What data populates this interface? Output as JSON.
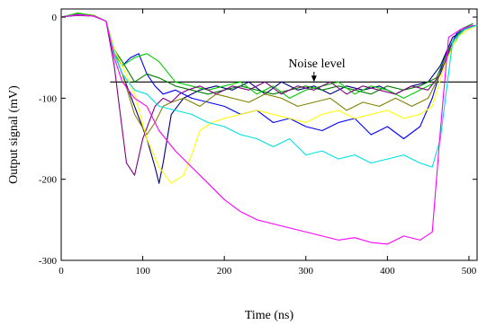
{
  "chart_data": {
    "type": "line",
    "title": "",
    "xlabel": "Time (ns)",
    "ylabel": "Output signal (mV)",
    "xlim": [
      0,
      510
    ],
    "ylim": [
      -300,
      10
    ],
    "xticks": [
      0,
      100,
      200,
      300,
      400,
      500
    ],
    "yticks": [
      0,
      -100,
      -200,
      -300
    ],
    "grid": false,
    "legend": "none",
    "annotation": {
      "text": "Noise level",
      "arrow_to": [
        310,
        -80
      ]
    },
    "noise_level": {
      "y": -80,
      "x_start": 60,
      "x_end": 510,
      "color": "#000000"
    },
    "series": [
      {
        "color": "#000080",
        "x": [
          0,
          20,
          40,
          55,
          65,
          75,
          90,
          105,
          115,
          120,
          125,
          135,
          150,
          170,
          190,
          210,
          230,
          250,
          270,
          290,
          310,
          330,
          350,
          370,
          390,
          410,
          430,
          450,
          465,
          480,
          495,
          510
        ],
        "y": [
          0,
          3,
          2,
          -5,
          -45,
          -70,
          -110,
          -150,
          -185,
          -205,
          -180,
          -120,
          -100,
          -90,
          -85,
          -90,
          -80,
          -95,
          -80,
          -90,
          -85,
          -95,
          -85,
          -90,
          -85,
          -95,
          -85,
          -80,
          -60,
          -25,
          -15,
          -10
        ]
      },
      {
        "color": "#0000ff",
        "x": [
          0,
          20,
          40,
          55,
          65,
          75,
          85,
          95,
          105,
          115,
          125,
          140,
          160,
          180,
          200,
          220,
          240,
          260,
          280,
          300,
          320,
          340,
          360,
          380,
          400,
          420,
          440,
          455,
          470,
          485,
          500,
          510
        ],
        "y": [
          0,
          3,
          1,
          -5,
          -40,
          -60,
          -50,
          -45,
          -70,
          -85,
          -95,
          -90,
          -100,
          -105,
          -110,
          -120,
          -115,
          -130,
          -125,
          -135,
          -140,
          -130,
          -125,
          -145,
          -135,
          -150,
          -135,
          -100,
          -50,
          -20,
          -12,
          -10
        ]
      },
      {
        "color": "#008000",
        "x": [
          0,
          20,
          40,
          55,
          65,
          75,
          90,
          105,
          120,
          140,
          160,
          180,
          200,
          220,
          240,
          260,
          280,
          300,
          320,
          340,
          360,
          380,
          400,
          420,
          440,
          460,
          475,
          490,
          505
        ],
        "y": [
          0,
          4,
          2,
          -5,
          -40,
          -55,
          -80,
          -70,
          -75,
          -85,
          -90,
          -95,
          -90,
          -85,
          -90,
          -95,
          -90,
          -85,
          -90,
          -85,
          -90,
          -95,
          -85,
          -90,
          -85,
          -75,
          -40,
          -15,
          -8
        ]
      },
      {
        "color": "#00cc00",
        "x": [
          0,
          20,
          40,
          55,
          65,
          75,
          90,
          105,
          120,
          140,
          160,
          180,
          200,
          220,
          240,
          260,
          280,
          300,
          320,
          340,
          360,
          380,
          400,
          420,
          440,
          460,
          475,
          490,
          505
        ],
        "y": [
          0,
          5,
          2,
          -5,
          -45,
          -60,
          -50,
          -45,
          -55,
          -80,
          -85,
          -90,
          -85,
          -80,
          -95,
          -85,
          -100,
          -90,
          -85,
          -80,
          -95,
          -85,
          -90,
          -100,
          -90,
          -80,
          -45,
          -18,
          -10
        ]
      },
      {
        "color": "#808000",
        "x": [
          0,
          20,
          40,
          55,
          65,
          75,
          90,
          105,
          115,
          125,
          135,
          150,
          170,
          190,
          210,
          230,
          250,
          270,
          290,
          310,
          330,
          350,
          370,
          390,
          410,
          430,
          450,
          465,
          480,
          495,
          510
        ],
        "y": [
          0,
          3,
          2,
          -5,
          -45,
          -70,
          -120,
          -145,
          -130,
          -110,
          -105,
          -100,
          -110,
          -95,
          -100,
          -105,
          -95,
          -100,
          -110,
          -105,
          -100,
          -115,
          -105,
          -110,
          -100,
          -110,
          -100,
          -70,
          -30,
          -15,
          -10
        ]
      },
      {
        "color": "#800080",
        "x": [
          0,
          20,
          40,
          55,
          65,
          70,
          80,
          90,
          100,
          115,
          125,
          135,
          145,
          155,
          170,
          190,
          210,
          230,
          250,
          270,
          290,
          310,
          330,
          350,
          370,
          390,
          410,
          430,
          450,
          465,
          480,
          495,
          510
        ],
        "y": [
          0,
          2,
          1,
          -5,
          -60,
          -100,
          -180,
          -195,
          -150,
          -110,
          -100,
          -105,
          -95,
          -90,
          -85,
          -95,
          -85,
          -90,
          -80,
          -95,
          -85,
          -90,
          -80,
          -95,
          -85,
          -90,
          -95,
          -85,
          -90,
          -70,
          -30,
          -15,
          -10
        ]
      },
      {
        "color": "#ffff00",
        "x": [
          0,
          20,
          40,
          55,
          65,
          75,
          90,
          105,
          120,
          135,
          150,
          160,
          170,
          185,
          200,
          220,
          240,
          260,
          280,
          300,
          320,
          340,
          360,
          380,
          400,
          420,
          440,
          455,
          470,
          485,
          500,
          510
        ],
        "y": [
          0,
          3,
          1,
          -5,
          -40,
          -60,
          -95,
          -150,
          -185,
          -205,
          -195,
          -170,
          -140,
          -130,
          -125,
          -120,
          -115,
          -120,
          -125,
          -130,
          -120,
          -115,
          -125,
          -120,
          -115,
          -125,
          -120,
          -110,
          -60,
          -25,
          -15,
          -10
        ]
      },
      {
        "color": "#00e0e0",
        "x": [
          0,
          20,
          40,
          55,
          65,
          75,
          90,
          105,
          120,
          140,
          160,
          180,
          200,
          220,
          240,
          260,
          280,
          300,
          320,
          340,
          360,
          380,
          400,
          420,
          440,
          455,
          465,
          480,
          495,
          510
        ],
        "y": [
          0,
          3,
          1,
          -5,
          -45,
          -70,
          -90,
          -95,
          -110,
          -115,
          -120,
          -130,
          -135,
          -145,
          -150,
          -160,
          -150,
          -170,
          -165,
          -175,
          -170,
          -180,
          -175,
          -170,
          -180,
          -185,
          -150,
          -30,
          -15,
          -10
        ]
      },
      {
        "color": "#ff00ff",
        "x": [
          0,
          20,
          40,
          55,
          65,
          75,
          90,
          105,
          120,
          140,
          160,
          180,
          200,
          220,
          240,
          260,
          280,
          300,
          320,
          340,
          360,
          380,
          400,
          420,
          440,
          455,
          465,
          475,
          490,
          505
        ],
        "y": [
          0,
          3,
          1,
          -5,
          -50,
          -80,
          -100,
          -110,
          -140,
          -165,
          -185,
          -205,
          -225,
          -240,
          -250,
          -255,
          -260,
          -265,
          -270,
          -275,
          -272,
          -278,
          -280,
          -270,
          -275,
          -265,
          -140,
          -25,
          -15,
          -10
        ]
      }
    ]
  }
}
